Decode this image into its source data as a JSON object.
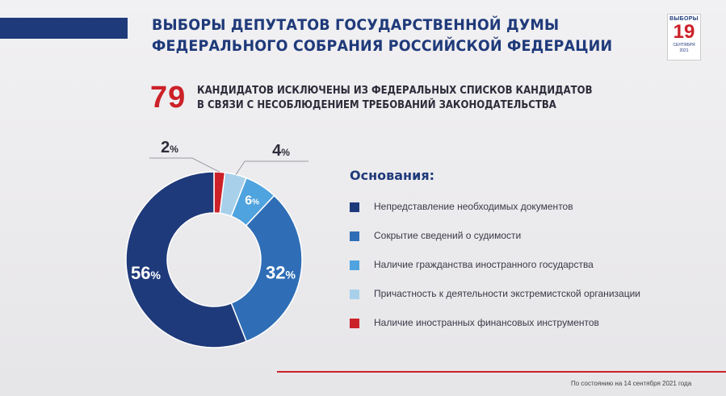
{
  "header": {
    "title_line1": "ВЫБОРЫ ДЕПУТАТОВ ГОСУДАРСТВЕННОЙ ДУМЫ",
    "title_line2": "ФЕДЕРАЛЬНОГО СОБРАНИЯ РОССИЙСКОЙ ФЕДЕРАЦИИ",
    "badge_top": "ВЫБОРЫ",
    "badge_num": "19",
    "badge_month": "СЕНТЯБРЯ",
    "badge_year": "2021"
  },
  "headline": {
    "number": "79",
    "text_line1": "КАНДИДАТОВ ИСКЛЮЧЕНЫ ИЗ ФЕДЕРАЛЬНЫХ СПИСКОВ КАНДИДАТОВ",
    "text_line2": "В СВЯЗИ С НЕСОБЛЮДЕНИЕМ ТРЕБОВАНИЙ ЗАКОНОДАТЕЛЬСТВА"
  },
  "colors": {
    "navy": "#1f3a7a",
    "red": "#cc2128",
    "medium_blue": "#2f6eb6",
    "light_blue": "#4fa3de",
    "pale_blue": "#a8d0ea"
  },
  "chart_data": {
    "type": "pie",
    "legend_title": "Основания:",
    "legend_placement": "right",
    "series": [
      {
        "name": "Непредставление необходимых документов",
        "value": 56,
        "label": "56%",
        "color": "#1f3a7a"
      },
      {
        "name": "Сокрытие сведений о судимости",
        "value": 32,
        "label": "32%",
        "color": "#2f6eb6"
      },
      {
        "name": "Наличие гражданства иностранного государства",
        "value": 6,
        "label": "6%",
        "color": "#4fa3de"
      },
      {
        "name": "Причастность к деятельности экстремистской организации",
        "value": 4,
        "label": "4%",
        "color": "#a8d0ea"
      },
      {
        "name": "Наличие иностранных финансовых инструментов",
        "value": 2,
        "label": "2%",
        "color": "#cc2128"
      }
    ]
  },
  "footer": {
    "note": "По состоянию на 14 сентября 2021 года"
  }
}
